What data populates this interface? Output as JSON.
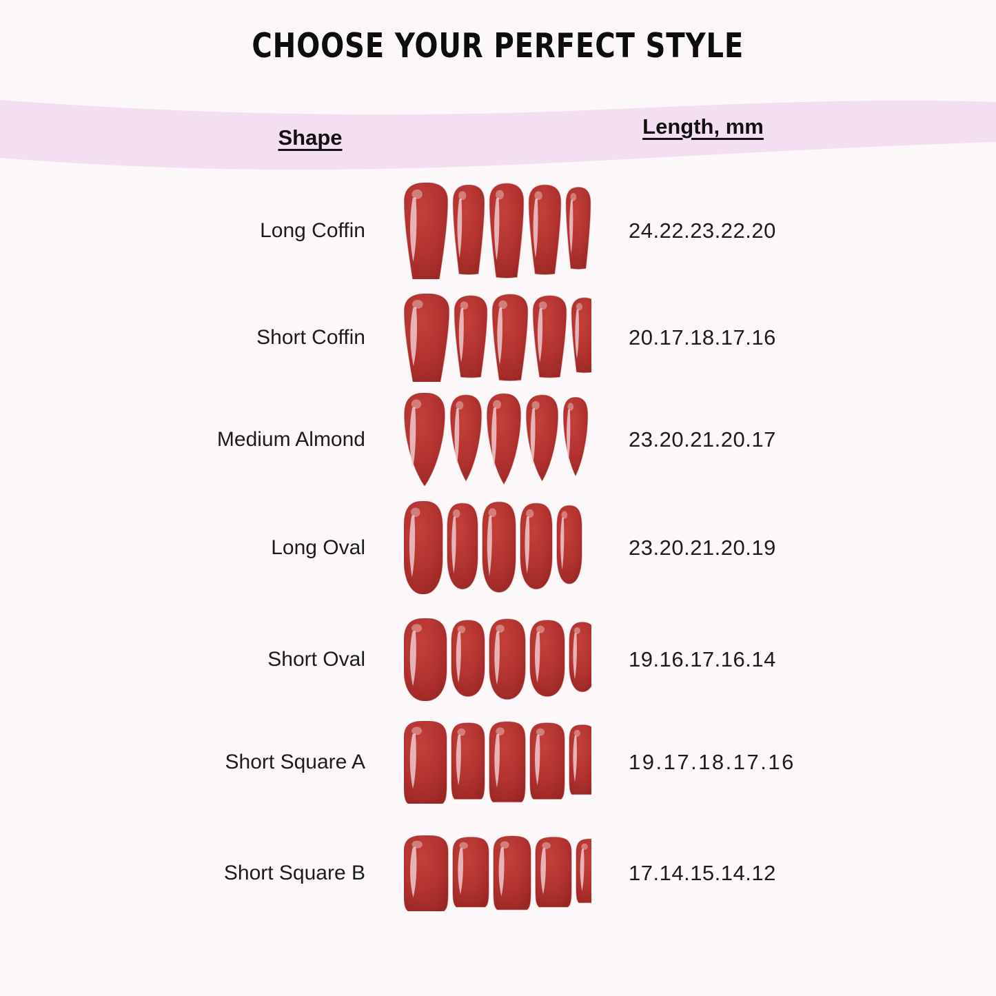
{
  "title": "CHOOSE YOUR PERFECT STYLE",
  "table": {
    "shape_header": "Shape",
    "length_header": "Length, mm",
    "rows": [
      {
        "shape": "Long Coffin",
        "lengths": "24.22.23.22.20",
        "nail_style": "long-coffin"
      },
      {
        "shape": "Short Coffin",
        "lengths": "20.17.18.17.16",
        "nail_style": "short-coffin"
      },
      {
        "shape": "Medium Almond",
        "lengths": "23.20.21.20.17",
        "nail_style": "medium-almond"
      },
      {
        "shape": "Long Oval",
        "lengths": "23.20.21.20.19",
        "nail_style": "long-oval"
      },
      {
        "shape": "Short Oval",
        "lengths": "19.16.17.16.14",
        "nail_style": "short-oval"
      },
      {
        "shape": "Short Square A",
        "lengths": "19.17.18.17.16",
        "nail_style": "short-square-a"
      },
      {
        "shape": "Short Square B",
        "lengths": "17.14.15.14.12",
        "nail_style": "short-square-b"
      }
    ]
  },
  "colors": {
    "background": "#fcf7f9",
    "band": "#f4def1",
    "nail_bright": "#c4403a",
    "nail_mid": "#b23330",
    "nail_dark": "#992624",
    "nail_edge": "#8e2023",
    "nail_highlight": "#f3d2d7",
    "text": "#1c1c1c"
  },
  "chart_data": {
    "type": "table",
    "title": "CHOOSE YOUR PERFECT STYLE",
    "columns": [
      "Shape",
      "Length, mm"
    ],
    "rows": [
      [
        "Long Coffin",
        "24.22.23.22.20"
      ],
      [
        "Short Coffin",
        "20.17.18.17.16"
      ],
      [
        "Medium Almond",
        "23.20.21.20.17"
      ],
      [
        "Long Oval",
        "23.20.21.20.19"
      ],
      [
        "Short Oval",
        "19.16.17.16.14"
      ],
      [
        "Short Square A",
        "19.17.18.17.16"
      ],
      [
        "Short Square B",
        "17.14.15.14.12"
      ]
    ],
    "lengths_mm_per_finger": {
      "finger_order": [
        "thumb",
        "index",
        "middle",
        "ring",
        "pinky"
      ],
      "Long Coffin": [
        24,
        22,
        23,
        22,
        20
      ],
      "Short Coffin": [
        20,
        17,
        18,
        17,
        16
      ],
      "Medium Almond": [
        23,
        20,
        21,
        20,
        17
      ],
      "Long Oval": [
        23,
        20,
        21,
        20,
        19
      ],
      "Short Oval": [
        19,
        16,
        17,
        16,
        14
      ],
      "Short Square A": [
        19,
        17,
        18,
        17,
        16
      ],
      "Short Square B": [
        17,
        14,
        15,
        14,
        12
      ]
    }
  }
}
